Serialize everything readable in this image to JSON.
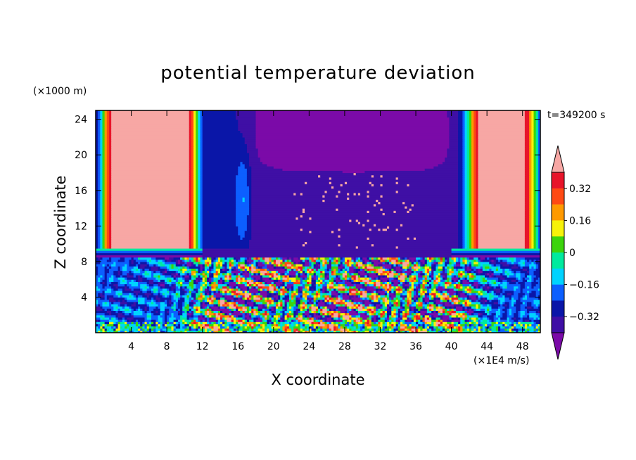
{
  "chart_data": {
    "type": "heatmap",
    "title": "potential temperature deviation",
    "xlabel": "X coordinate",
    "ylabel": "Z coordinate",
    "x_unit": "(×1E4 m/s)",
    "y_unit": "(×1000 m)",
    "time_label": "t=349200 s",
    "xlim": [
      0,
      50
    ],
    "ylim": [
      0,
      25
    ],
    "x_ticks": [
      4,
      8,
      12,
      16,
      20,
      24,
      28,
      32,
      36,
      40,
      44,
      48
    ],
    "y_ticks": [
      4,
      8,
      12,
      16,
      20,
      24
    ],
    "colorbar": {
      "tick_values": [
        0.32,
        0.16,
        0,
        -0.16,
        -0.32
      ],
      "tick_labels": [
        "0.32",
        "0.16",
        "0",
        "−0.16",
        "−0.32"
      ],
      "levels": [
        -0.4,
        -0.32,
        -0.24,
        -0.16,
        -0.08,
        0,
        0.08,
        0.16,
        0.24,
        0.32,
        0.4
      ],
      "colors": [
        "#7b0aa8",
        "#3f0fa5",
        "#0a16a8",
        "#0c5fff",
        "#00d3ff",
        "#00ea9e",
        "#3cd40c",
        "#f7f20a",
        "#ff9a00",
        "#ff4a14",
        "#e8142a",
        "#f7a7a4"
      ],
      "extend": "both"
    },
    "grid": false,
    "legend": "colorbar-right"
  }
}
